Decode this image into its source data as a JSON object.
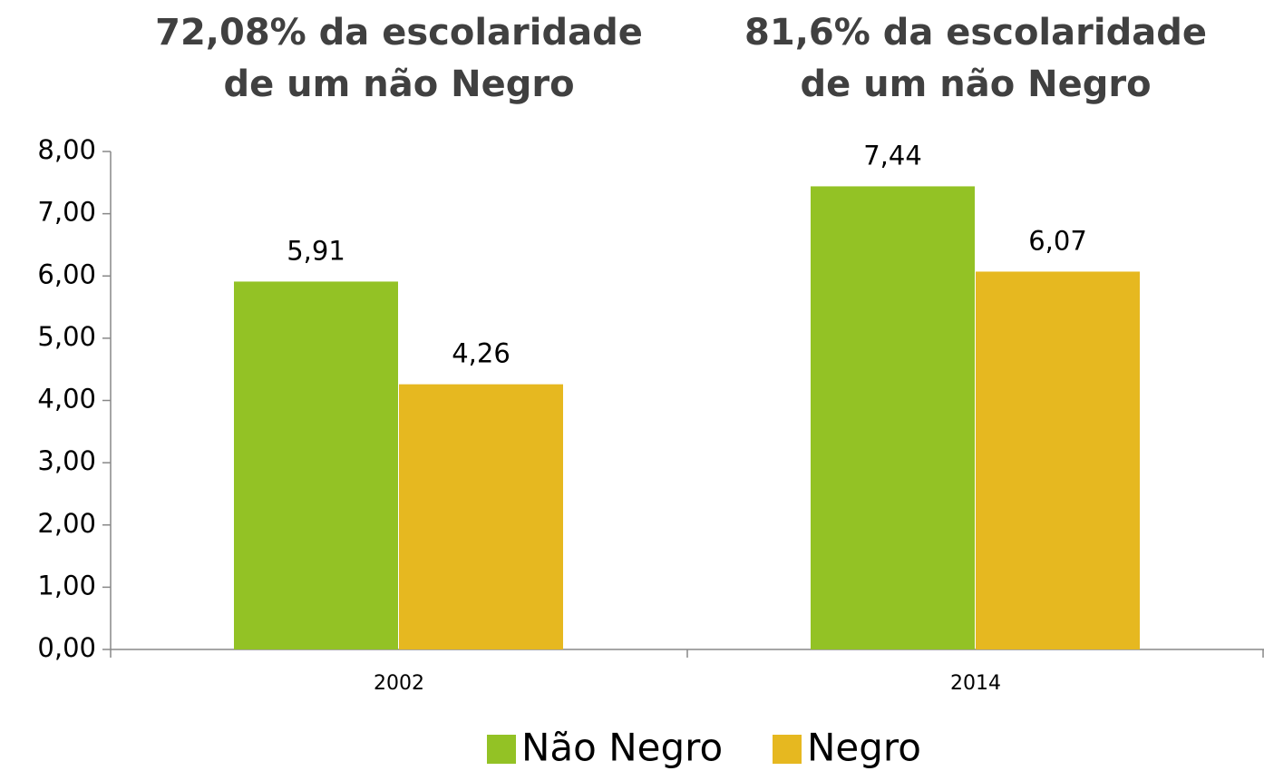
{
  "chart_data": {
    "type": "bar",
    "annotations": [
      [
        "72,08% da escolaridade",
        "de um não Negro"
      ],
      [
        "81,6% da escolaridade",
        "de um não Negro"
      ]
    ],
    "categories": [
      "2002",
      "2014"
    ],
    "series": [
      {
        "name": "Não Negro",
        "color": "#93c225",
        "values": [
          5.91,
          7.44
        ],
        "value_labels": [
          "5,91",
          "7,44"
        ]
      },
      {
        "name": "Negro",
        "color": "#e6b820",
        "values": [
          4.26,
          6.07
        ],
        "value_labels": [
          "4,26",
          "6,07"
        ]
      }
    ],
    "ylim": [
      0,
      8
    ],
    "yticks": [
      {
        "value": 0,
        "label": "0,00"
      },
      {
        "value": 1,
        "label": "1,00"
      },
      {
        "value": 2,
        "label": "2,00"
      },
      {
        "value": 3,
        "label": "3,00"
      },
      {
        "value": 4,
        "label": "4,00"
      },
      {
        "value": 5,
        "label": "5,00"
      },
      {
        "value": 6,
        "label": "6,00"
      },
      {
        "value": 7,
        "label": "7,00"
      },
      {
        "value": 8,
        "label": "8,00"
      }
    ],
    "grid": false,
    "legend": "bottom"
  }
}
